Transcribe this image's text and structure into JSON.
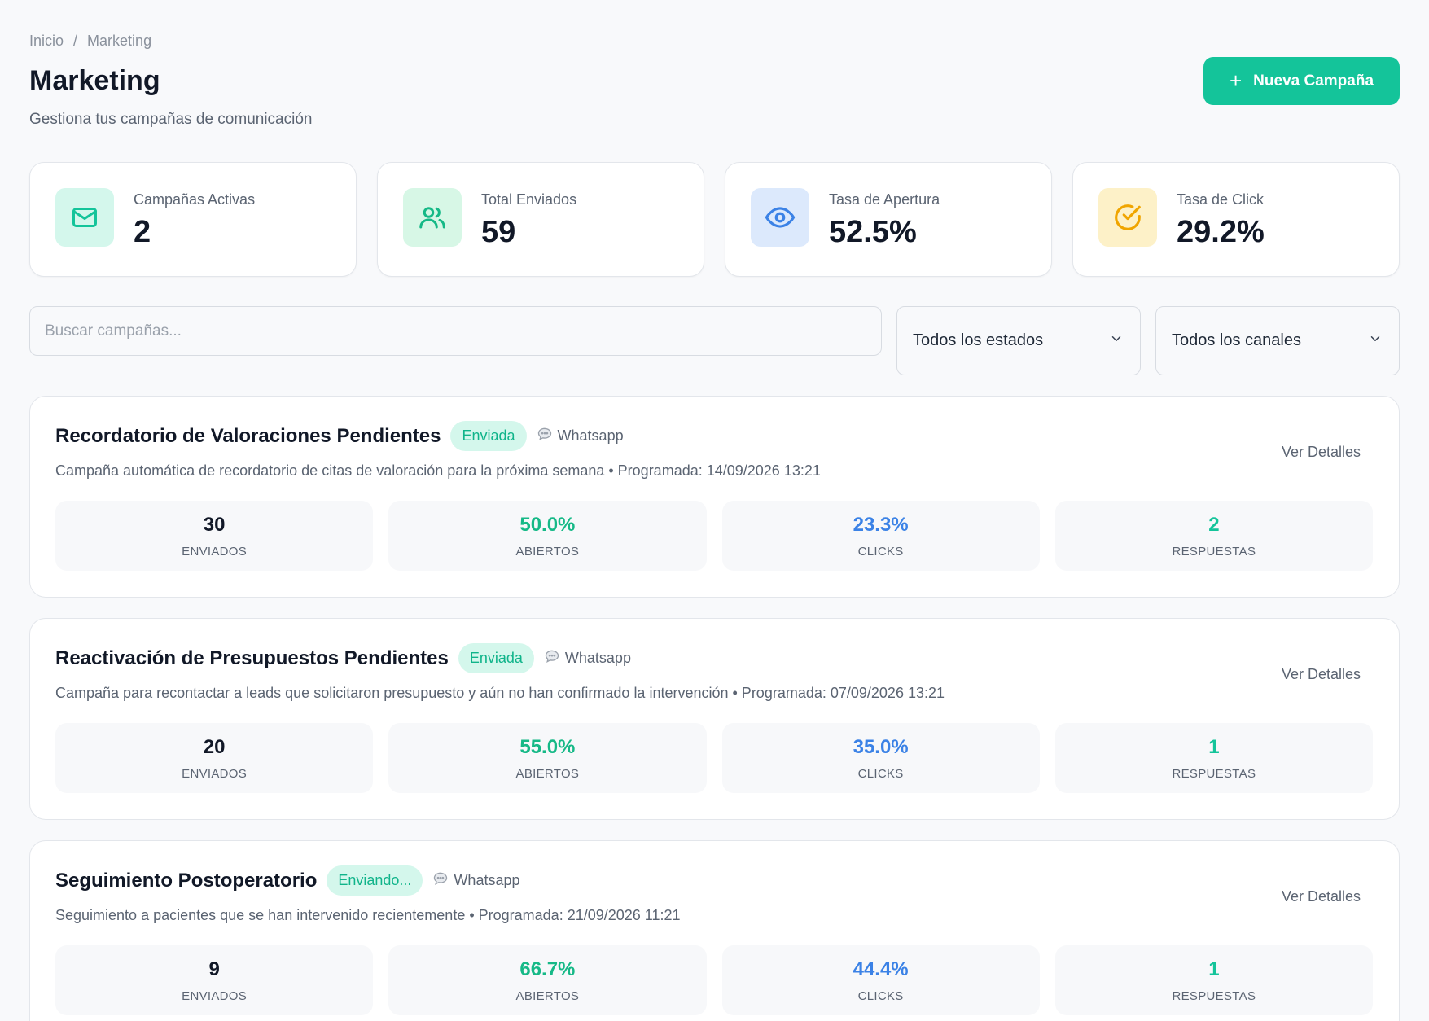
{
  "breadcrumb": {
    "home": "Inicio",
    "separator": "/",
    "current": "Marketing"
  },
  "header": {
    "title": "Marketing",
    "subtitle": "Gestiona tus campañas de comunicación",
    "new_button_icon": "+",
    "new_button": "Nueva Campaña"
  },
  "stats": [
    {
      "label": "Campañas Activas",
      "value": "2",
      "icon": "mail-icon",
      "color": "#14c49a",
      "bg": "#d4f7ec"
    },
    {
      "label": "Total Enviados",
      "value": "59",
      "icon": "users-icon",
      "color": "#16b987",
      "bg": "#d7f7e6"
    },
    {
      "label": "Tasa de Apertura",
      "value": "52.5%",
      "icon": "eye-icon",
      "color": "#3b82e6",
      "bg": "#dce9fc"
    },
    {
      "label": "Tasa de Click",
      "value": "29.2%",
      "icon": "check-circle-icon",
      "color": "#f0a500",
      "bg": "#fdf1c8"
    }
  ],
  "filters": {
    "search_placeholder": "Buscar campañas...",
    "status_selected": "Todos los estados",
    "channel_selected": "Todos los canales"
  },
  "metric_labels": {
    "sent": "ENVIADOS",
    "opened": "ABIERTOS",
    "clicks": "CLICKS",
    "replies": "RESPUESTAS"
  },
  "campaigns": [
    {
      "title": "Recordatorio de Valoraciones Pendientes",
      "status": "Enviada",
      "channel": "Whatsapp",
      "description": "Campaña automática de recordatorio de citas de valoración para la próxima semana • Programada: 14/09/2026 13:21",
      "details_link": "Ver Detalles",
      "sent": "30",
      "opened": "50.0%",
      "clicks": "23.3%",
      "replies": "2"
    },
    {
      "title": "Reactivación de Presupuestos Pendientes",
      "status": "Enviada",
      "channel": "Whatsapp",
      "description": "Campaña para recontactar a leads que solicitaron presupuesto y aún no han confirmado la intervención • Programada: 07/09/2026 13:21",
      "details_link": "Ver Detalles",
      "sent": "20",
      "opened": "55.0%",
      "clicks": "35.0%",
      "replies": "1"
    },
    {
      "title": "Seguimiento Postoperatorio",
      "status": "Enviando...",
      "channel": "Whatsapp",
      "description": "Seguimiento a pacientes que se han intervenido recientemente • Programada: 21/09/2026 11:21",
      "details_link": "Ver Detalles",
      "sent": "9",
      "opened": "66.7%",
      "clicks": "44.4%",
      "replies": "1"
    }
  ]
}
